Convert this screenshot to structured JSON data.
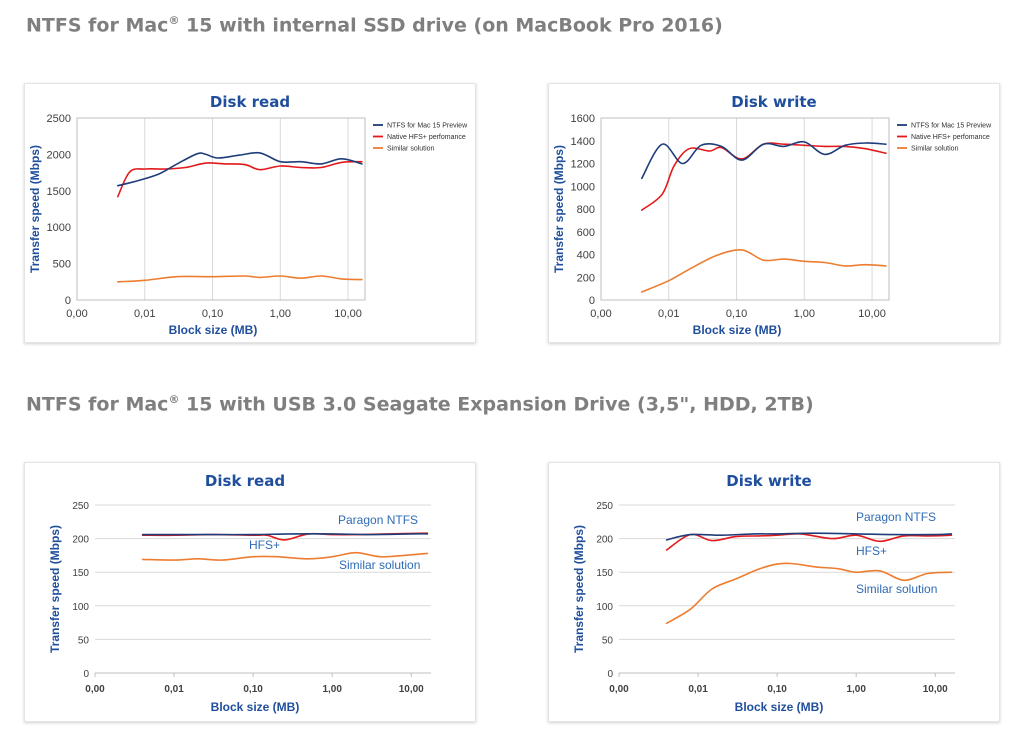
{
  "sections": [
    {
      "title_main": "NTFS for Mac",
      "title_sup": "®",
      "title_rest": " 15 with internal SSD drive (on MacBook Pro 2016)"
    },
    {
      "title_main": "NTFS for Mac",
      "title_sup": "®",
      "title_rest": " 15 with USB 3.0 Seagate Expansion Drive (3,5\", HDD, 2TB)"
    }
  ],
  "colors": {
    "navy": "#1f3d7a",
    "red": "#e3191b",
    "orange": "#ed7d31",
    "title_blue": "#1f4e9c",
    "axis_blue": "#1f4e9c",
    "label_blue": "#2e6bb5",
    "grid": "#d9d9d9"
  },
  "chart_data": [
    {
      "type": "line",
      "title": "Disk read",
      "xlabel": "Block size (MB)",
      "ylabel": "Transfer speed (Mbps)",
      "x_scale": "log",
      "x_ticks": [
        0.001,
        0.01,
        0.1,
        1,
        10
      ],
      "x_tick_labels": [
        "0,00",
        "0,01",
        "0,10",
        "1,00",
        "10,00"
      ],
      "ylim": [
        0,
        2500
      ],
      "y_ticks": [
        0,
        500,
        1000,
        1500,
        2000,
        2500
      ],
      "grid": "vertical",
      "legend": "top-right",
      "series": [
        {
          "name": "NTFS for Mac 15 Preview",
          "color": "navy",
          "x": [
            0.004,
            0.008,
            0.016,
            0.03,
            0.06,
            0.08,
            0.12,
            0.25,
            0.5,
            1,
            2,
            4,
            8,
            16
          ],
          "y": [
            1570,
            1640,
            1730,
            1870,
            2010,
            2000,
            1950,
            1990,
            2020,
            1900,
            1900,
            1870,
            1940,
            1870
          ]
        },
        {
          "name": "Native HFS+ perfomance",
          "color": "red",
          "x": [
            0.004,
            0.006,
            0.01,
            0.02,
            0.04,
            0.08,
            0.15,
            0.3,
            0.5,
            1,
            2,
            4,
            8,
            16
          ],
          "y": [
            1420,
            1760,
            1800,
            1800,
            1820,
            1880,
            1870,
            1860,
            1790,
            1840,
            1820,
            1820,
            1890,
            1900
          ]
        },
        {
          "name": "Similar solution",
          "color": "orange",
          "x": [
            0.004,
            0.01,
            0.03,
            0.1,
            0.3,
            0.5,
            1,
            2,
            4,
            8,
            16
          ],
          "y": [
            250,
            270,
            320,
            320,
            330,
            310,
            330,
            300,
            330,
            290,
            280
          ]
        }
      ]
    },
    {
      "type": "line",
      "title": "Disk write",
      "xlabel": "Block size (MB)",
      "ylabel": "Transfer speed (Mbps)",
      "x_scale": "log",
      "x_ticks": [
        0.001,
        0.01,
        0.1,
        1,
        10
      ],
      "x_tick_labels": [
        "0,00",
        "0,01",
        "0,10",
        "1,00",
        "10,00"
      ],
      "ylim": [
        0,
        1600
      ],
      "y_ticks": [
        0,
        200,
        400,
        600,
        800,
        1000,
        1200,
        1400,
        1600
      ],
      "grid": "vertical",
      "legend": "top-right",
      "series": [
        {
          "name": "NTFS for Mac 15 Preview",
          "color": "navy",
          "x": [
            0.004,
            0.008,
            0.016,
            0.03,
            0.06,
            0.12,
            0.25,
            0.5,
            1,
            2,
            4,
            8,
            16
          ],
          "y": [
            1070,
            1370,
            1200,
            1360,
            1350,
            1230,
            1370,
            1350,
            1390,
            1280,
            1360,
            1380,
            1370
          ]
        },
        {
          "name": "Native HFS+ perfomance",
          "color": "red",
          "x": [
            0.004,
            0.008,
            0.012,
            0.02,
            0.04,
            0.06,
            0.12,
            0.25,
            0.5,
            1,
            2,
            4,
            8,
            16
          ],
          "y": [
            790,
            930,
            1180,
            1330,
            1310,
            1340,
            1240,
            1370,
            1370,
            1360,
            1350,
            1350,
            1330,
            1290
          ]
        },
        {
          "name": "Similar solution",
          "color": "orange",
          "x": [
            0.004,
            0.01,
            0.02,
            0.05,
            0.12,
            0.25,
            0.5,
            1,
            2,
            4,
            8,
            16
          ],
          "y": [
            70,
            170,
            270,
            390,
            440,
            350,
            360,
            340,
            330,
            300,
            310,
            300
          ]
        }
      ]
    },
    {
      "type": "line",
      "title": "Disk read",
      "xlabel": "Block size (MB)",
      "ylabel": "Transfer speed (Mbps)",
      "x_scale": "log",
      "x_ticks": [
        0.001,
        0.01,
        0.1,
        1,
        10
      ],
      "x_tick_labels": [
        "0,00",
        "0,01",
        "0,10",
        "1,00",
        "10,00"
      ],
      "ylim": [
        0,
        250
      ],
      "y_ticks": [
        0,
        50,
        100,
        150,
        200,
        250
      ],
      "grid": "horizontal",
      "legend": "inline",
      "series": [
        {
          "name": "Paragon NTFS",
          "color": "navy",
          "x": [
            0.004,
            0.01,
            0.03,
            0.1,
            0.3,
            1,
            3,
            10,
            16
          ],
          "y": [
            206,
            206,
            206,
            206,
            207,
            207,
            206,
            207,
            207
          ]
        },
        {
          "name": "HFS+",
          "color": "red",
          "x": [
            0.004,
            0.01,
            0.03,
            0.1,
            0.15,
            0.25,
            0.5,
            1,
            2,
            5,
            16
          ],
          "y": [
            205,
            205,
            206,
            205,
            205,
            198,
            207,
            206,
            206,
            207,
            208
          ]
        },
        {
          "name": "Similar solution",
          "color": "orange",
          "x": [
            0.004,
            0.01,
            0.02,
            0.04,
            0.1,
            0.2,
            0.5,
            1,
            2,
            4,
            8,
            16
          ],
          "y": [
            169,
            168,
            170,
            168,
            173,
            173,
            170,
            173,
            179,
            173,
            175,
            178
          ]
        }
      ]
    },
    {
      "type": "line",
      "title": "Disk write",
      "xlabel": "Block size (MB)",
      "ylabel": "Transfer speed (Mbps)",
      "x_scale": "log",
      "x_ticks": [
        0.001,
        0.01,
        0.1,
        1,
        10
      ],
      "x_tick_labels": [
        "0,00",
        "0,01",
        "0,10",
        "1,00",
        "10,00"
      ],
      "ylim": [
        0,
        250
      ],
      "y_ticks": [
        0,
        50,
        100,
        150,
        200,
        250
      ],
      "grid": "horizontal",
      "legend": "inline",
      "series": [
        {
          "name": "Paragon NTFS",
          "color": "navy",
          "x": [
            0.004,
            0.008,
            0.02,
            0.05,
            0.1,
            0.3,
            1,
            3,
            10,
            16
          ],
          "y": [
            198,
            206,
            205,
            207,
            207,
            208,
            207,
            206,
            206,
            207
          ]
        },
        {
          "name": "HFS+",
          "color": "red",
          "x": [
            0.004,
            0.008,
            0.015,
            0.03,
            0.06,
            0.1,
            0.2,
            0.5,
            1,
            2,
            4,
            8,
            16
          ],
          "y": [
            183,
            206,
            197,
            203,
            204,
            205,
            207,
            200,
            205,
            196,
            204,
            204,
            205
          ]
        },
        {
          "name": "Similar solution",
          "color": "orange",
          "x": [
            0.004,
            0.008,
            0.015,
            0.03,
            0.06,
            0.1,
            0.15,
            0.3,
            0.6,
            1,
            2,
            4,
            8,
            16
          ],
          "y": [
            74,
            95,
            125,
            140,
            155,
            162,
            163,
            158,
            155,
            150,
            152,
            138,
            148,
            150
          ]
        }
      ]
    }
  ]
}
